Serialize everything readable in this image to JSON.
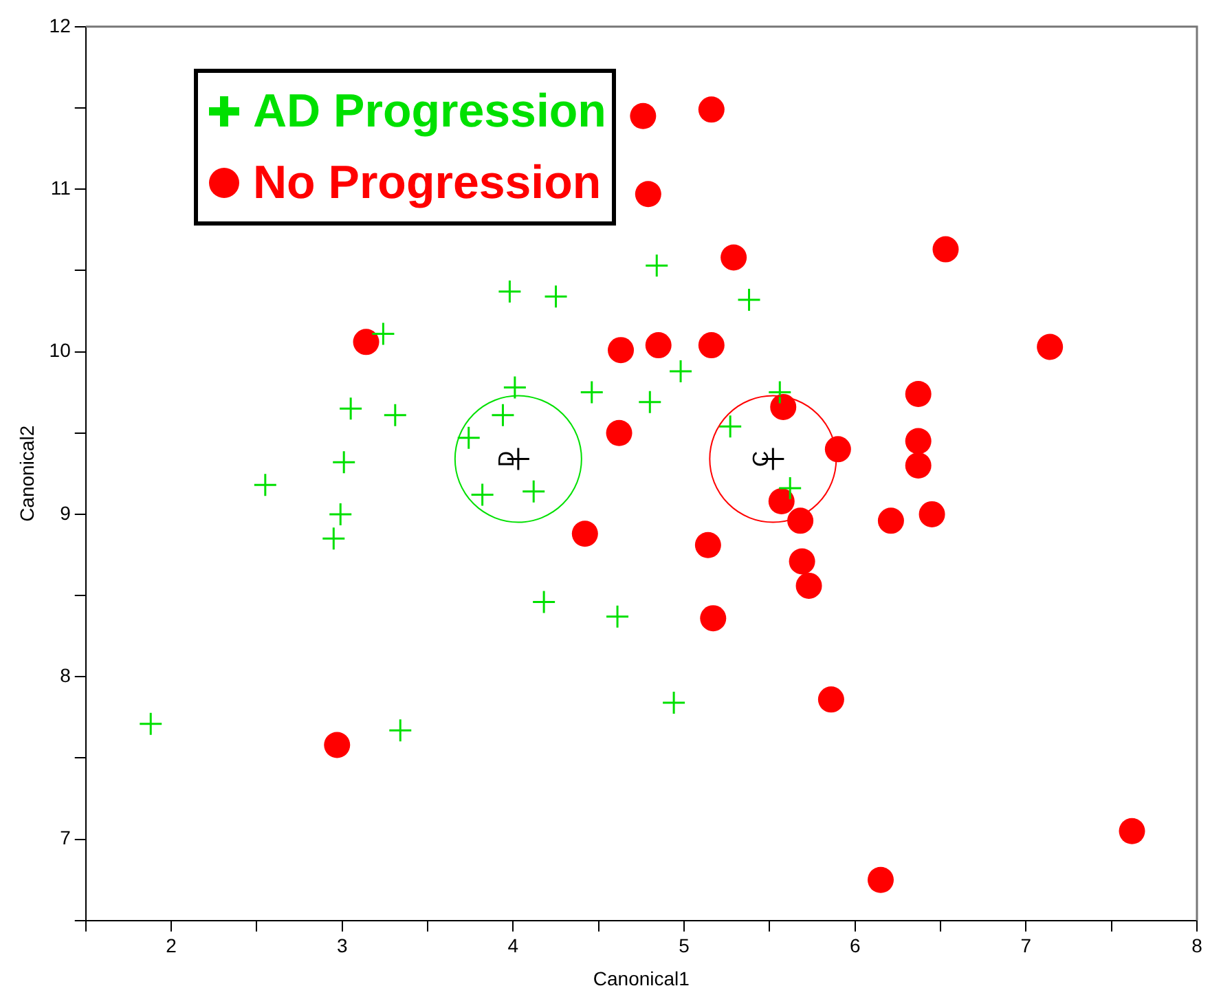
{
  "chart_data": {
    "type": "scatter",
    "xlabel": "Canonical1",
    "ylabel": "Canonical2",
    "xlim": [
      1.5,
      8
    ],
    "ylim": [
      6.5,
      12
    ],
    "xticks": [
      {
        "value": 1.5,
        "label": null
      },
      2,
      {
        "value": 2.5,
        "label": null
      },
      3,
      {
        "value": 3.5,
        "label": null
      },
      4,
      {
        "value": 4.5,
        "label": null
      },
      5,
      {
        "value": 5.5,
        "label": null
      },
      6,
      {
        "value": 6.5,
        "label": null
      },
      7,
      {
        "value": 7.5,
        "label": null
      },
      8
    ],
    "yticks": [
      {
        "value": 6.5,
        "label": null
      },
      7,
      {
        "value": 7.5,
        "label": null
      },
      8,
      {
        "value": 8.5,
        "label": null
      },
      9,
      {
        "value": 9.5,
        "label": null
      },
      10,
      {
        "value": 10.5,
        "label": null
      },
      11,
      {
        "value": 11.5,
        "label": null
      },
      12
    ],
    "legend": "top left",
    "grid": false,
    "series": [
      {
        "name": "AD Progression",
        "color": "#00e000",
        "marker": "cross",
        "x": [
          1.88,
          2.55,
          2.95,
          2.99,
          3.01,
          3.05,
          3.24,
          3.31,
          3.34,
          3.74,
          3.82,
          3.94,
          4.01,
          3.98,
          4.12,
          4.18,
          4.25,
          4.46,
          4.61,
          4.8,
          4.84,
          4.94,
          4.98,
          5.27,
          5.38,
          5.56,
          5.62
        ],
        "values": [
          7.71,
          9.18,
          8.85,
          9.0,
          9.32,
          9.65,
          10.11,
          9.61,
          7.67,
          9.47,
          9.12,
          9.61,
          9.78,
          10.37,
          9.14,
          8.46,
          10.34,
          9.75,
          8.37,
          9.69,
          10.53,
          7.84,
          9.88,
          9.54,
          10.32,
          9.75,
          9.16
        ]
      },
      {
        "name": "No Progression",
        "color": "#ff0000",
        "marker": "circle",
        "x": [
          4.76,
          5.16,
          4.79,
          5.29,
          6.53,
          3.14,
          4.63,
          4.85,
          5.16,
          7.14,
          4.62,
          5.58,
          6.37,
          5.9,
          6.37,
          6.37,
          5.57,
          5.68,
          6.21,
          6.45,
          4.42,
          5.14,
          5.69,
          5.73,
          5.17,
          5.86,
          2.97,
          7.62,
          6.15
        ],
        "values": [
          11.45,
          11.49,
          10.97,
          10.58,
          10.63,
          10.06,
          10.01,
          10.04,
          10.04,
          10.03,
          9.5,
          9.66,
          9.74,
          9.4,
          9.45,
          9.3,
          9.08,
          8.96,
          8.96,
          9.0,
          8.88,
          8.81,
          8.71,
          8.56,
          8.36,
          7.86,
          7.58,
          7.05,
          6.75
        ]
      },
      {
        "color": "#000000",
        "marker": "cross",
        "x": [
          4.03,
          5.52
        ],
        "values": [
          9.34,
          9.34
        ]
      }
    ],
    "annotations": [
      {
        "text": "D",
        "x": 4.03,
        "y": 9.34
      },
      {
        "text": "C",
        "x": 5.52,
        "y": 9.34
      }
    ]
  }
}
